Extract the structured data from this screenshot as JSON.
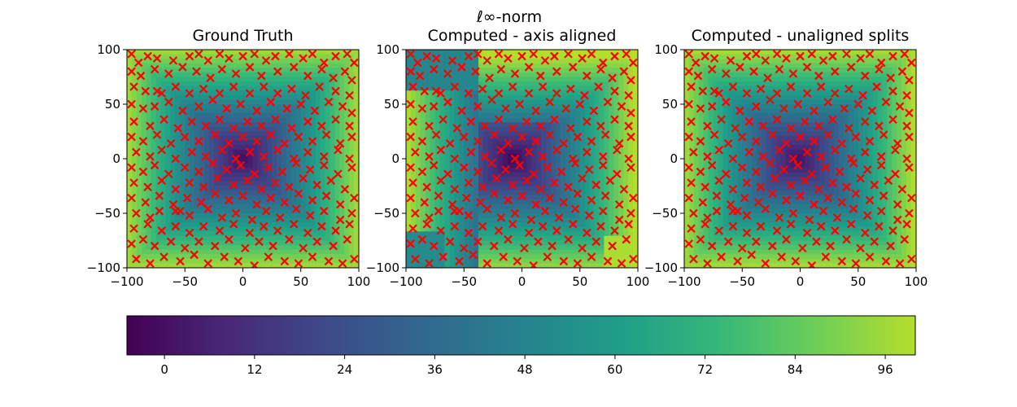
{
  "suptitle": "ℓ∞-norm",
  "chart_data": [
    {
      "type": "heatmap",
      "title": "Ground Truth",
      "field": "linf_distance_smooth",
      "xlim": [
        -100,
        100
      ],
      "ylim": [
        -100,
        100
      ],
      "xticks": [
        -100,
        -50,
        0,
        50,
        100
      ],
      "yticks": [
        -100,
        -50,
        0,
        50,
        100
      ],
      "marker": "x",
      "marker_color": "#ff0000",
      "grid": false
    },
    {
      "type": "heatmap",
      "title": "Computed - axis aligned",
      "field": "linf_distance_axis_aligned_blocks",
      "xlim": [
        -100,
        100
      ],
      "ylim": [
        -100,
        100
      ],
      "xticks": [
        -100,
        -50,
        0,
        50,
        100
      ],
      "yticks": [
        -100,
        -50,
        0,
        50,
        100
      ],
      "marker": "x",
      "marker_color": "#ff0000",
      "grid": false
    },
    {
      "type": "heatmap",
      "title": "Computed - unaligned splits",
      "field": "linf_distance_unaligned",
      "xlim": [
        -100,
        100
      ],
      "ylim": [
        -100,
        100
      ],
      "xticks": [
        -100,
        -50,
        0,
        50,
        100
      ],
      "yticks": [
        -100,
        -50,
        0,
        50,
        100
      ],
      "marker": "x",
      "marker_color": "#ff0000",
      "grid": false
    }
  ],
  "colorbar": {
    "colormap": "viridis",
    "range": [
      -5,
      100
    ],
    "ticks": [
      0,
      12,
      24,
      36,
      48,
      60,
      72,
      84,
      96
    ],
    "colors": [
      "#440154",
      "#482878",
      "#3e4989",
      "#31688e",
      "#26828e",
      "#1f9e89",
      "#35b779",
      "#6ece58",
      "#b5de2b"
    ]
  },
  "points": [
    [
      -96,
      96
    ],
    [
      -90,
      88
    ],
    [
      -82,
      94
    ],
    [
      -74,
      92
    ],
    [
      -60,
      90
    ],
    [
      -46,
      94
    ],
    [
      -38,
      96
    ],
    [
      -30,
      90
    ],
    [
      -20,
      96
    ],
    [
      -12,
      92
    ],
    [
      0,
      94
    ],
    [
      10,
      96
    ],
    [
      20,
      90
    ],
    [
      28,
      94
    ],
    [
      40,
      96
    ],
    [
      52,
      92
    ],
    [
      60,
      96
    ],
    [
      70,
      88
    ],
    [
      80,
      94
    ],
    [
      90,
      96
    ],
    [
      96,
      88
    ],
    [
      -96,
      80
    ],
    [
      -88,
      76
    ],
    [
      -76,
      82
    ],
    [
      -64,
      78
    ],
    [
      -52,
      84
    ],
    [
      -40,
      80
    ],
    [
      -28,
      74
    ],
    [
      -18,
      82
    ],
    [
      -6,
      78
    ],
    [
      6,
      84
    ],
    [
      16,
      76
    ],
    [
      30,
      80
    ],
    [
      44,
      84
    ],
    [
      56,
      76
    ],
    [
      68,
      82
    ],
    [
      78,
      74
    ],
    [
      88,
      80
    ],
    [
      94,
      72
    ],
    [
      -94,
      66
    ],
    [
      -84,
      62
    ],
    [
      -74,
      62
    ],
    [
      -70,
      60
    ],
    [
      -58,
      66
    ],
    [
      -46,
      60
    ],
    [
      -34,
      64
    ],
    [
      -20,
      60
    ],
    [
      -8,
      66
    ],
    [
      6,
      60
    ],
    [
      18,
      66
    ],
    [
      30,
      60
    ],
    [
      42,
      64
    ],
    [
      54,
      58
    ],
    [
      66,
      66
    ],
    [
      80,
      62
    ],
    [
      92,
      58
    ],
    [
      -96,
      50
    ],
    [
      -86,
      46
    ],
    [
      -76,
      48
    ],
    [
      -64,
      52
    ],
    [
      -52,
      44
    ],
    [
      -38,
      48
    ],
    [
      -26,
      54
    ],
    [
      -14,
      46
    ],
    [
      -2,
      50
    ],
    [
      12,
      44
    ],
    [
      24,
      52
    ],
    [
      38,
      46
    ],
    [
      50,
      50
    ],
    [
      62,
      44
    ],
    [
      74,
      52
    ],
    [
      86,
      48
    ],
    [
      94,
      42
    ],
    [
      -94,
      34
    ],
    [
      -80,
      30
    ],
    [
      -68,
      36
    ],
    [
      -56,
      28
    ],
    [
      -44,
      34
    ],
    [
      -32,
      30
    ],
    [
      -20,
      36
    ],
    [
      -8,
      28
    ],
    [
      4,
      34
    ],
    [
      16,
      30
    ],
    [
      28,
      36
    ],
    [
      42,
      28
    ],
    [
      56,
      34
    ],
    [
      68,
      30
    ],
    [
      80,
      36
    ],
    [
      92,
      30
    ],
    [
      -96,
      20
    ],
    [
      -86,
      16
    ],
    [
      -74,
      22
    ],
    [
      -62,
      14
    ],
    [
      -50,
      20
    ],
    [
      -38,
      16
    ],
    [
      -24,
      22
    ],
    [
      -12,
      14
    ],
    [
      0,
      20
    ],
    [
      12,
      16
    ],
    [
      24,
      22
    ],
    [
      36,
      14
    ],
    [
      48,
      20
    ],
    [
      60,
      16
    ],
    [
      72,
      22
    ],
    [
      84,
      14
    ],
    [
      94,
      20
    ],
    [
      -92,
      6
    ],
    [
      -80,
      2
    ],
    [
      -70,
      8
    ],
    [
      -58,
      0
    ],
    [
      -44,
      6
    ],
    [
      -32,
      2
    ],
    [
      -18,
      8
    ],
    [
      -6,
      0
    ],
    [
      6,
      6
    ],
    [
      18,
      2
    ],
    [
      30,
      8
    ],
    [
      44,
      0
    ],
    [
      56,
      6
    ],
    [
      70,
      2
    ],
    [
      82,
      8
    ],
    [
      92,
      0
    ],
    [
      -96,
      -8
    ],
    [
      -86,
      -12
    ],
    [
      -76,
      -6
    ],
    [
      -64,
      -14
    ],
    [
      -50,
      -8
    ],
    [
      -38,
      -12
    ],
    [
      -26,
      -4
    ],
    [
      -14,
      -10
    ],
    [
      -2,
      -6
    ],
    [
      10,
      -14
    ],
    [
      22,
      -8
    ],
    [
      34,
      -12
    ],
    [
      46,
      -4
    ],
    [
      58,
      -10
    ],
    [
      70,
      -6
    ],
    [
      82,
      -14
    ],
    [
      94,
      -8
    ],
    [
      -94,
      -22
    ],
    [
      -82,
      -26
    ],
    [
      -70,
      -20
    ],
    [
      -58,
      -28
    ],
    [
      -46,
      -22
    ],
    [
      -34,
      -26
    ],
    [
      -22,
      -18
    ],
    [
      -8,
      -24
    ],
    [
      4,
      -20
    ],
    [
      16,
      -28
    ],
    [
      28,
      -22
    ],
    [
      40,
      -26
    ],
    [
      52,
      -18
    ],
    [
      64,
      -24
    ],
    [
      76,
      -20
    ],
    [
      88,
      -28
    ],
    [
      -96,
      -36
    ],
    [
      -84,
      -40
    ],
    [
      -72,
      -34
    ],
    [
      -60,
      -42
    ],
    [
      -48,
      -36
    ],
    [
      -36,
      -40
    ],
    [
      -24,
      -32
    ],
    [
      -12,
      -38
    ],
    [
      0,
      -34
    ],
    [
      12,
      -42
    ],
    [
      24,
      -36
    ],
    [
      36,
      -40
    ],
    [
      48,
      -32
    ],
    [
      60,
      -38
    ],
    [
      72,
      -34
    ],
    [
      84,
      -42
    ],
    [
      96,
      -36
    ],
    [
      -92,
      -50
    ],
    [
      -80,
      -54
    ],
    [
      -72,
      -48
    ],
    [
      -58,
      -48
    ],
    [
      -54,
      -48
    ],
    [
      -46,
      -52
    ],
    [
      -30,
      -46
    ],
    [
      -18,
      -54
    ],
    [
      -6,
      -50
    ],
    [
      8,
      -56
    ],
    [
      20,
      -48
    ],
    [
      32,
      -54
    ],
    [
      46,
      -46
    ],
    [
      58,
      -52
    ],
    [
      70,
      -48
    ],
    [
      84,
      -56
    ],
    [
      94,
      -50
    ],
    [
      -94,
      -64
    ],
    [
      -82,
      -60
    ],
    [
      -70,
      -66
    ],
    [
      -58,
      -62
    ],
    [
      -46,
      -68
    ],
    [
      -34,
      -62
    ],
    [
      -20,
      -66
    ],
    [
      -8,
      -60
    ],
    [
      6,
      -68
    ],
    [
      18,
      -62
    ],
    [
      30,
      -66
    ],
    [
      44,
      -60
    ],
    [
      56,
      -68
    ],
    [
      68,
      -62
    ],
    [
      80,
      -66
    ],
    [
      92,
      -60
    ],
    [
      -96,
      -78
    ],
    [
      -86,
      -74
    ],
    [
      -76,
      -80
    ],
    [
      -62,
      -76
    ],
    [
      -50,
      -82
    ],
    [
      -38,
      -76
    ],
    [
      -24,
      -80
    ],
    [
      -12,
      -74
    ],
    [
      2,
      -82
    ],
    [
      14,
      -76
    ],
    [
      26,
      -80
    ],
    [
      40,
      -74
    ],
    [
      52,
      -82
    ],
    [
      64,
      -76
    ],
    [
      78,
      -80
    ],
    [
      90,
      -74
    ],
    [
      -92,
      -92
    ],
    [
      -80,
      -96
    ],
    [
      -68,
      -90
    ],
    [
      -54,
      -94
    ],
    [
      -42,
      -88
    ],
    [
      -30,
      -96
    ],
    [
      -16,
      -90
    ],
    [
      -4,
      -94
    ],
    [
      10,
      -98
    ],
    [
      22,
      -90
    ],
    [
      36,
      -94
    ],
    [
      48,
      -96
    ],
    [
      60,
      -90
    ],
    [
      74,
      -94
    ],
    [
      86,
      -96
    ],
    [
      96,
      -92
    ]
  ]
}
